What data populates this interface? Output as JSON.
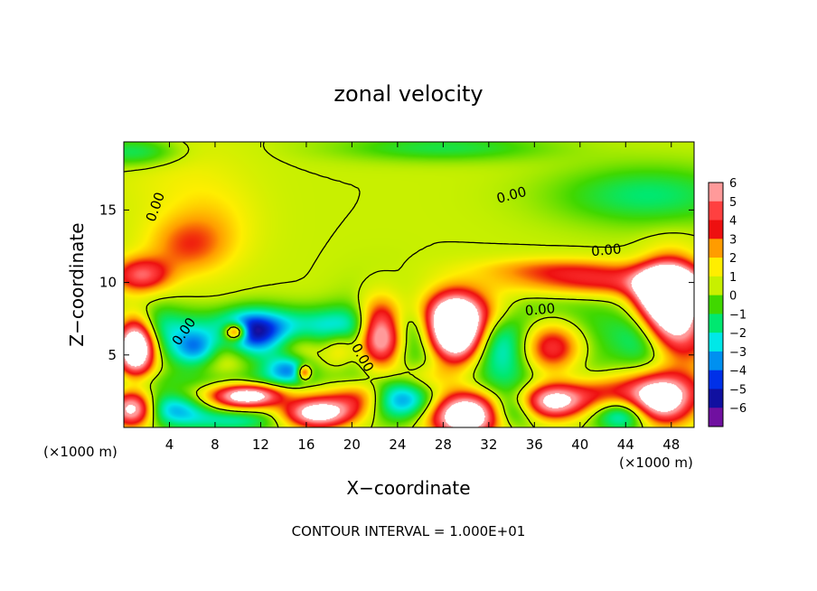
{
  "chart_data": {
    "type": "heatmap",
    "title": "zonal velocity",
    "xlabel": "X−coordinate",
    "ylabel": "Z−coordinate",
    "x_unit_left": "(×1000 m)",
    "x_unit_right": "(×1000 m)",
    "xlim": [
      0,
      50
    ],
    "ylim": [
      0,
      19.7
    ],
    "x_ticks": [
      4,
      8,
      12,
      16,
      20,
      24,
      28,
      32,
      36,
      40,
      44,
      48
    ],
    "y_ticks": [
      5,
      10,
      15
    ],
    "footer": "CONTOUR INTERVAL = 1.000E+01",
    "colorbar": {
      "levels": [
        6,
        5,
        4,
        3,
        2,
        1,
        0,
        -1,
        -2,
        -3,
        -4,
        -5,
        -6
      ],
      "labels": [
        "6",
        "5",
        "4",
        "3",
        "2",
        "1",
        "0",
        "−1",
        "−2",
        "−3",
        "−4",
        "−5",
        "−6"
      ],
      "colors": [
        "#ff9a9a",
        "#ff4040",
        "#ee1010",
        "#ff9c00",
        "#ffee00",
        "#c8f000",
        "#40d800",
        "#00e870",
        "#00e8e8",
        "#0090f0",
        "#0030e8",
        "#1010a0",
        "#7010a0"
      ]
    },
    "contour_labels": [
      {
        "text": "0.00",
        "x": 2.8,
        "z": 15.2,
        "rotate": -70
      },
      {
        "text": "0.00",
        "x": 5.3,
        "z": 6.6,
        "rotate": -55
      },
      {
        "text": "0.00",
        "x": 20.9,
        "z": 4.8,
        "rotate": 60
      },
      {
        "text": "0.00",
        "x": 34.0,
        "z": 16.0,
        "rotate": -15
      },
      {
        "text": "0.00",
        "x": 42.3,
        "z": 12.2,
        "rotate": -5
      },
      {
        "text": "0.00",
        "x": 36.5,
        "z": 8.1,
        "rotate": -5
      }
    ],
    "field": {
      "background": 1.0,
      "features": [
        {
          "x": 4.5,
          "z": 17.5,
          "rx": 5.5,
          "rz": 3.5,
          "v": 0.6
        },
        {
          "x": 5.5,
          "z": 12.5,
          "rx": 3.5,
          "rz": 2.0,
          "v": 2.2
        },
        {
          "x": 1.0,
          "z": 19.0,
          "rx": 4.0,
          "rz": 1.0,
          "v": -2.0
        },
        {
          "x": 46.0,
          "z": 16.0,
          "rx": 8.0,
          "rz": 2.0,
          "v": -2.0
        },
        {
          "x": 28.0,
          "z": 19.3,
          "rx": 9.0,
          "rz": 0.9,
          "v": -1.6
        },
        {
          "x": 8.0,
          "z": 14.0,
          "rx": 4.0,
          "rz": 3.0,
          "v": 1.0
        },
        {
          "x": 1.5,
          "z": 10.5,
          "rx": 2.5,
          "rz": 1.2,
          "v": 4.2
        },
        {
          "x": 42.0,
          "z": 10.0,
          "rx": 9.0,
          "rz": 1.0,
          "v": 3.2
        },
        {
          "x": 47.5,
          "z": 9.5,
          "rx": 2.5,
          "rz": 1.5,
          "v": 8.0
        },
        {
          "x": 38.0,
          "z": 11.0,
          "rx": 7.0,
          "rz": 0.8,
          "v": 2.0
        },
        {
          "x": 15.0,
          "z": 7.0,
          "rx": 10.0,
          "rz": 1.3,
          "v": -3.0
        },
        {
          "x": 9.8,
          "z": 6.6,
          "rx": 1.0,
          "rz": 0.6,
          "v": 6.0
        },
        {
          "x": 11.0,
          "z": 6.5,
          "rx": 2.5,
          "rz": 1.4,
          "v": -3.5
        },
        {
          "x": 6.5,
          "z": 5.5,
          "rx": 2.0,
          "rz": 1.2,
          "v": -3.2
        },
        {
          "x": 14.5,
          "z": 4.0,
          "rx": 2.0,
          "rz": 1.0,
          "v": -4.0
        },
        {
          "x": 15.8,
          "z": 3.8,
          "rx": 0.6,
          "rz": 0.5,
          "v": 4.5
        },
        {
          "x": 22.5,
          "z": 6.5,
          "rx": 2.0,
          "rz": 2.2,
          "v": 9.0
        },
        {
          "x": 22.5,
          "z": 6.0,
          "rx": 3.2,
          "rz": 3.0,
          "v": -3.0
        },
        {
          "x": 19.0,
          "z": 5.5,
          "rx": 1.5,
          "rz": 1.4,
          "v": 2.6
        },
        {
          "x": 29.0,
          "z": 6.8,
          "rx": 2.3,
          "rz": 2.0,
          "v": 11.0
        },
        {
          "x": 30.0,
          "z": 8.0,
          "rx": 4.0,
          "rz": 1.5,
          "v": 3.0
        },
        {
          "x": 38.0,
          "z": 5.5,
          "rx": 3.5,
          "rz": 2.0,
          "v": 7.5
        },
        {
          "x": 37.0,
          "z": 5.5,
          "rx": 6.0,
          "rz": 3.0,
          "v": -4.5
        },
        {
          "x": 48.0,
          "z": 8.0,
          "rx": 2.5,
          "rz": 3.0,
          "v": 9.0
        },
        {
          "x": 45.0,
          "z": 6.0,
          "rx": 3.0,
          "rz": 2.0,
          "v": -2.5
        },
        {
          "x": 1.0,
          "z": 5.5,
          "rx": 1.6,
          "rz": 1.8,
          "v": 9.0
        },
        {
          "x": 3.0,
          "z": 6.5,
          "rx": 2.0,
          "rz": 2.0,
          "v": -1.8
        },
        {
          "x": 8.0,
          "z": 3.2,
          "rx": 14.0,
          "rz": 0.8,
          "v": -1.0
        },
        {
          "x": 11.0,
          "z": 2.2,
          "rx": 3.0,
          "rz": 0.8,
          "v": 7.5
        },
        {
          "x": 17.0,
          "z": 1.0,
          "rx": 3.0,
          "rz": 1.0,
          "v": 7.5
        },
        {
          "x": 4.5,
          "z": 1.2,
          "rx": 3.0,
          "rz": 1.2,
          "v": -3.0
        },
        {
          "x": 0.8,
          "z": 1.3,
          "rx": 1.8,
          "rz": 1.2,
          "v": 6.5
        },
        {
          "x": 10.0,
          "z": 0.5,
          "rx": 4.0,
          "rz": 0.8,
          "v": -2.5
        },
        {
          "x": 24.0,
          "z": 1.8,
          "rx": 3.0,
          "rz": 1.4,
          "v": -3.5
        },
        {
          "x": 30.0,
          "z": 0.8,
          "rx": 3.0,
          "rz": 1.4,
          "v": 9.0
        },
        {
          "x": 37.5,
          "z": 1.8,
          "rx": 3.0,
          "rz": 1.2,
          "v": 8.0
        },
        {
          "x": 34.0,
          "z": 1.2,
          "rx": 2.5,
          "rz": 1.2,
          "v": -3.5
        },
        {
          "x": 42.5,
          "z": 2.5,
          "rx": 3.0,
          "rz": 1.3,
          "v": 2.5
        },
        {
          "x": 47.0,
          "z": 2.0,
          "rx": 3.0,
          "rz": 1.6,
          "v": 9.0
        },
        {
          "x": 44.0,
          "z": 1.0,
          "rx": 2.5,
          "rz": 1.2,
          "v": -4.5
        },
        {
          "x": 21.0,
          "z": 2.2,
          "rx": 2.5,
          "rz": 1.2,
          "v": 3.0
        },
        {
          "x": 26.0,
          "z": 3.5,
          "rx": 3.0,
          "rz": 1.0,
          "v": 1.5
        }
      ]
    }
  }
}
